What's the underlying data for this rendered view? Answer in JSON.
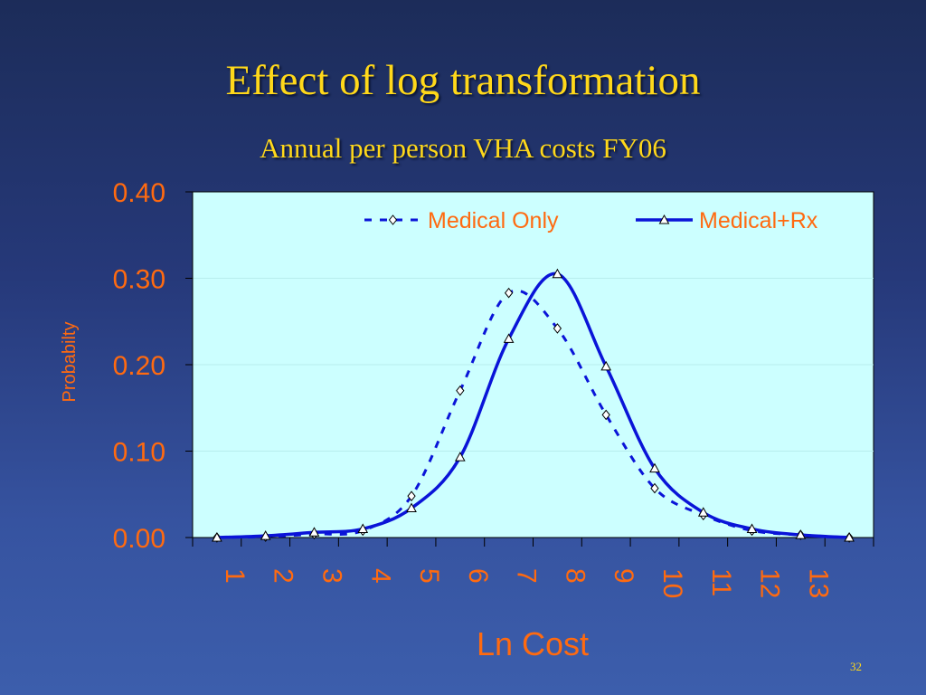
{
  "slide": {
    "title": "Effect of log transformation",
    "subtitle": "Annual per person VHA costs FY06",
    "slide_number": "32"
  },
  "colors": {
    "text_accent": "#ffd81a",
    "axis_text": "#ff6a10",
    "plot_background": "#ccffff",
    "series_line": "#0a14d8",
    "axis_line": "#000000"
  },
  "chart_data": {
    "type": "line",
    "title": "",
    "xlabel": "Ln Cost",
    "ylabel": "Probabilty",
    "ylim": [
      0,
      0.4
    ],
    "yticks": [
      "0.00",
      "0.10",
      "0.20",
      "0.30",
      "0.40"
    ],
    "ytick_values": [
      0,
      0.1,
      0.2,
      0.3,
      0.4
    ],
    "categories": [
      "1",
      "2",
      "3",
      "4",
      "5",
      "6",
      "7",
      "8",
      "9",
      "10",
      "11",
      "12",
      "13"
    ],
    "grid": "horizontal",
    "legend_position": "top",
    "series": [
      {
        "name": "Medical Only",
        "style": "dashed",
        "marker": "diamond",
        "x": [
          1.5,
          2.5,
          3.5,
          4.5,
          5.5,
          6.5,
          7.5,
          8.5,
          9.5,
          10.5,
          11.5,
          12.5,
          13.5,
          14.5
        ],
        "values": [
          0.0,
          0.001,
          0.004,
          0.008,
          0.048,
          0.17,
          0.283,
          0.242,
          0.142,
          0.057,
          0.026,
          0.008,
          0.003,
          0.0
        ]
      },
      {
        "name": "Medical+Rx",
        "style": "solid",
        "marker": "triangle",
        "x": [
          1.5,
          2.5,
          3.5,
          4.5,
          5.5,
          6.5,
          7.5,
          8.5,
          9.5,
          10.5,
          11.5,
          12.5,
          13.5,
          14.5
        ],
        "values": [
          0.0,
          0.002,
          0.006,
          0.01,
          0.034,
          0.093,
          0.23,
          0.305,
          0.198,
          0.08,
          0.029,
          0.01,
          0.003,
          0.0
        ]
      }
    ]
  }
}
